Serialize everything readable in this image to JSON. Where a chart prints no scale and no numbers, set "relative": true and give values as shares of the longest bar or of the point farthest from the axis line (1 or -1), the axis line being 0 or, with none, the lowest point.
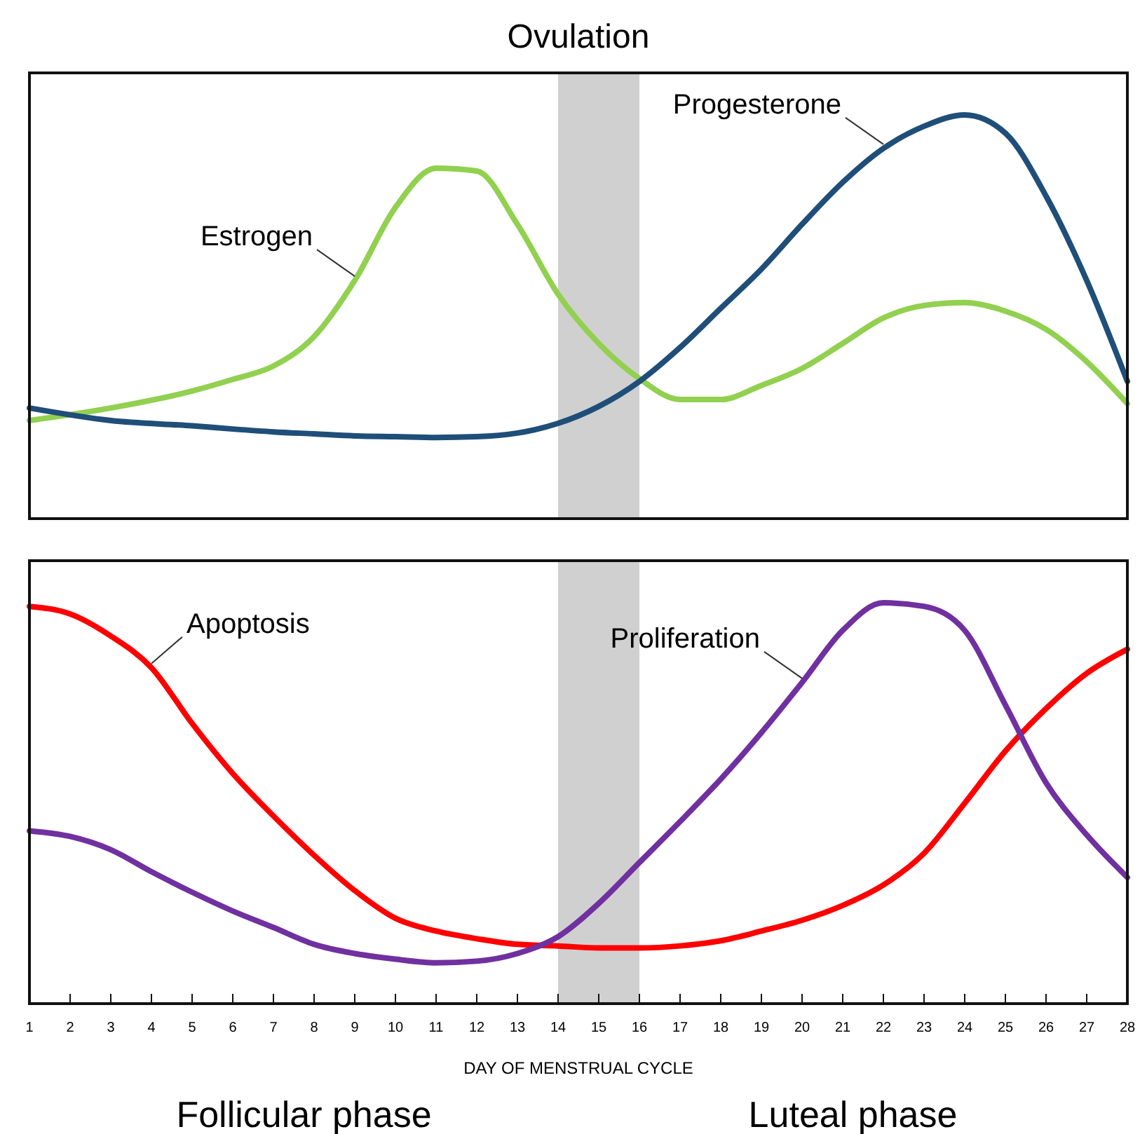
{
  "chart_data": [
    {
      "type": "line",
      "title": "Ovulation",
      "relative": true,
      "xlim": [
        1,
        28
      ],
      "tick_labels": false,
      "grid": false,
      "line_style": "solid",
      "marker": "none",
      "x": [
        1,
        3,
        5,
        6,
        7,
        8,
        9,
        10,
        11,
        12,
        13,
        14,
        15,
        16,
        17,
        18,
        19,
        20,
        21,
        22,
        23,
        24,
        25,
        26,
        27,
        28
      ],
      "bands": [
        {
          "axis": "x",
          "from": 14,
          "to": 16,
          "color": "#d0d0d0"
        }
      ],
      "series": [
        {
          "name": "Estrogen",
          "color": "#92d050",
          "values": [
            0.243,
            0.274,
            0.316,
            0.345,
            0.378,
            0.451,
            0.59,
            0.771,
            0.868,
            0.861,
            0.729,
            0.556,
            0.434,
            0.347,
            0.295,
            0.295,
            0.33,
            0.372,
            0.434,
            0.497,
            0.528,
            0.535,
            0.514,
            0.469,
            0.389,
            0.285
          ]
        },
        {
          "name": "Progesterone",
          "color": "#1f4e79",
          "values": [
            0.274,
            0.243,
            0.23,
            0.222,
            0.215,
            0.21,
            0.205,
            0.203,
            0.201,
            0.203,
            0.212,
            0.236,
            0.278,
            0.34,
            0.424,
            0.521,
            0.618,
            0.729,
            0.833,
            0.917,
            0.972,
            1,
            0.955,
            0.799,
            0.59,
            0.34
          ]
        }
      ]
    },
    {
      "type": "line",
      "relative": true,
      "xlim": [
        1,
        28
      ],
      "xticks": [
        1,
        2,
        3,
        4,
        5,
        6,
        7,
        8,
        9,
        10,
        11,
        12,
        13,
        14,
        15,
        16,
        17,
        18,
        19,
        20,
        21,
        22,
        23,
        24,
        25,
        26,
        27,
        28
      ],
      "tick_labels": "x",
      "grid": false,
      "line_style": "solid",
      "marker": "none",
      "xlabel": "DAY OF MENSTRUAL CYCLE",
      "annotations": [
        "Follicular phase",
        "Luteal phase"
      ],
      "x": [
        1,
        2,
        3,
        4,
        5,
        6,
        7,
        8,
        9,
        10,
        11,
        12,
        13,
        14,
        15,
        16,
        17,
        18,
        19,
        20,
        21,
        22,
        23,
        24,
        25,
        26,
        27,
        28
      ],
      "bands": [
        {
          "axis": "x",
          "from": 14,
          "to": 16,
          "color": "#d0d0d0"
        }
      ],
      "series": [
        {
          "name": "Apoptosis",
          "color": "#ff0000",
          "values": [
            0.991,
            0.972,
            0.917,
            0.838,
            0.699,
            0.574,
            0.468,
            0.37,
            0.282,
            0.213,
            0.181,
            0.162,
            0.148,
            0.144,
            0.139,
            0.139,
            0.144,
            0.157,
            0.181,
            0.208,
            0.245,
            0.296,
            0.375,
            0.5,
            0.63,
            0.736,
            0.824,
            0.884
          ]
        },
        {
          "name": "Proliferation",
          "color": "#7030a0",
          "values": [
            0.431,
            0.417,
            0.384,
            0.329,
            0.278,
            0.231,
            0.19,
            0.148,
            0.125,
            0.111,
            0.102,
            0.106,
            0.125,
            0.167,
            0.25,
            0.352,
            0.454,
            0.56,
            0.676,
            0.801,
            0.931,
            1,
            0.991,
            0.931,
            0.745,
            0.551,
            0.421,
            0.315
          ]
        }
      ]
    }
  ]
}
